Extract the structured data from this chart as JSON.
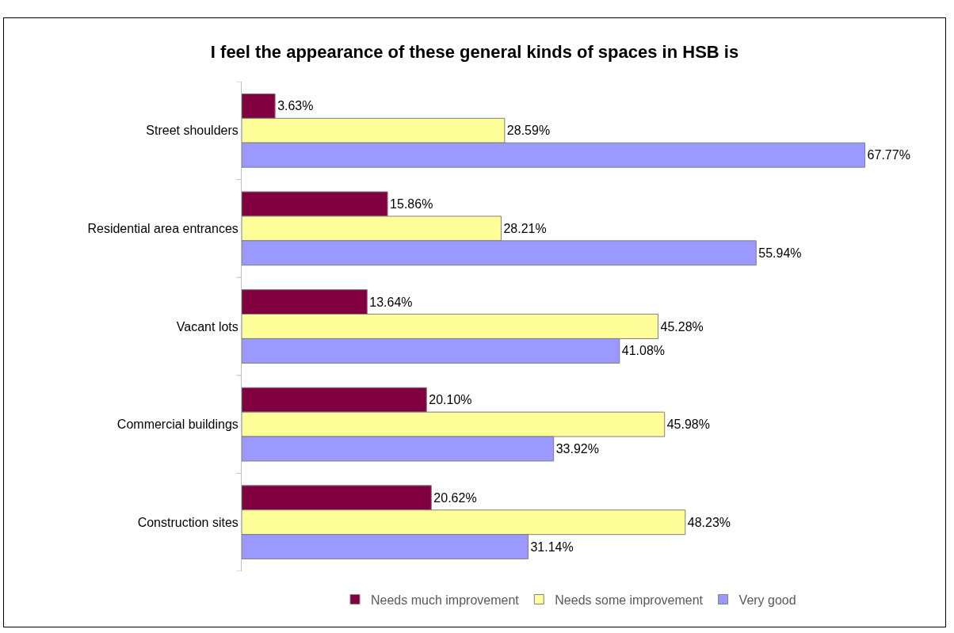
{
  "chart_data": {
    "type": "bar",
    "orientation": "horizontal",
    "title": "I feel the appearance of these general kinds of spaces in HSB is",
    "categories": [
      "Street shoulders",
      "Residential area entrances",
      "Vacant lots",
      "Commercial buildings",
      "Construction sites"
    ],
    "series": [
      {
        "name": "Needs much improvement",
        "color": "#800040",
        "values": [
          3.63,
          15.86,
          13.64,
          20.1,
          20.62
        ],
        "value_labels": [
          "3.63%",
          "15.86%",
          "13.64%",
          "20.10%",
          "20.62%"
        ]
      },
      {
        "name": "Needs some improvement",
        "color": "#ffff99",
        "values": [
          28.59,
          28.21,
          45.28,
          45.98,
          48.23
        ],
        "value_labels": [
          "28.59%",
          "28.21%",
          "45.28%",
          "45.98%",
          "48.23%"
        ]
      },
      {
        "name": "Very good",
        "color": "#9999ff",
        "values": [
          67.77,
          55.94,
          41.08,
          33.92,
          31.14
        ],
        "value_labels": [
          "67.77%",
          "55.94%",
          "41.08%",
          "33.92%",
          "31.14%"
        ]
      }
    ],
    "legend": "bottom",
    "grid": false
  }
}
